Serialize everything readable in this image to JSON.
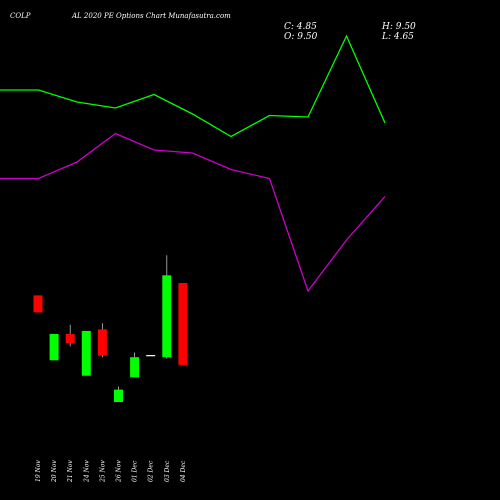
{
  "header": {
    "symbol": "COLP",
    "title": "AL 2020 PE Options Chart Munafasutra.com",
    "close_label": "C: 4.85",
    "high_label": "H: 9.50",
    "open_label": "O: 9.50",
    "low_label": "L: 4.65"
  },
  "colors": {
    "background": "#000000",
    "up_candle": "#00ff00",
    "down_candle": "#ff0000",
    "neutral_candle": "#ffffff",
    "line_upper": "#00ff00",
    "line_lower": "#cc00cc"
  },
  "chart_data": [
    {
      "type": "line",
      "series": [
        {
          "color": "#00ff00",
          "values": [
            10.0,
            10.0,
            9.6,
            9.4,
            9.85,
            9.2,
            8.45,
            9.15,
            9.1,
            11.8,
            8.9
          ]
        },
        {
          "color": "#cc00cc",
          "values": [
            7.05,
            7.05,
            7.6,
            8.55,
            8.0,
            7.9,
            7.35,
            7.05,
            3.3,
            5.0,
            6.45
          ]
        }
      ],
      "ylim": [
        3.0,
        12.0
      ]
    },
    {
      "type": "candlestick",
      "categories": [
        "19 Nov",
        "20 Nov",
        "21 Nov",
        "24 Nov",
        "25 Nov",
        "26 Nov",
        "01 Dec",
        "02 Dec",
        "03 Dec",
        "04 Dec"
      ],
      "candles": [
        {
          "open": 6.9,
          "high": 6.9,
          "low": 5.8,
          "close": 5.8
        },
        {
          "open": 2.7,
          "high": 4.4,
          "low": 2.7,
          "close": 4.4
        },
        {
          "open": 4.4,
          "high": 5.0,
          "low": 3.6,
          "close": 3.8
        },
        {
          "open": 1.7,
          "high": 4.6,
          "low": 1.7,
          "close": 4.6
        },
        {
          "open": 4.7,
          "high": 5.1,
          "low": 2.9,
          "close": 3.0
        },
        {
          "open": 0.0,
          "high": 1.0,
          "low": 0.0,
          "close": 0.8
        },
        {
          "open": 1.6,
          "high": 3.2,
          "low": 1.6,
          "close": 2.9
        },
        {
          "open": 3.0,
          "high": 3.0,
          "low": 3.0,
          "close": 3.0
        },
        {
          "open": 2.9,
          "high": 9.5,
          "low": 2.8,
          "close": 8.2
        },
        {
          "open": 7.7,
          "high": 7.7,
          "low": 2.4,
          "close": 2.4
        }
      ]
    }
  ]
}
